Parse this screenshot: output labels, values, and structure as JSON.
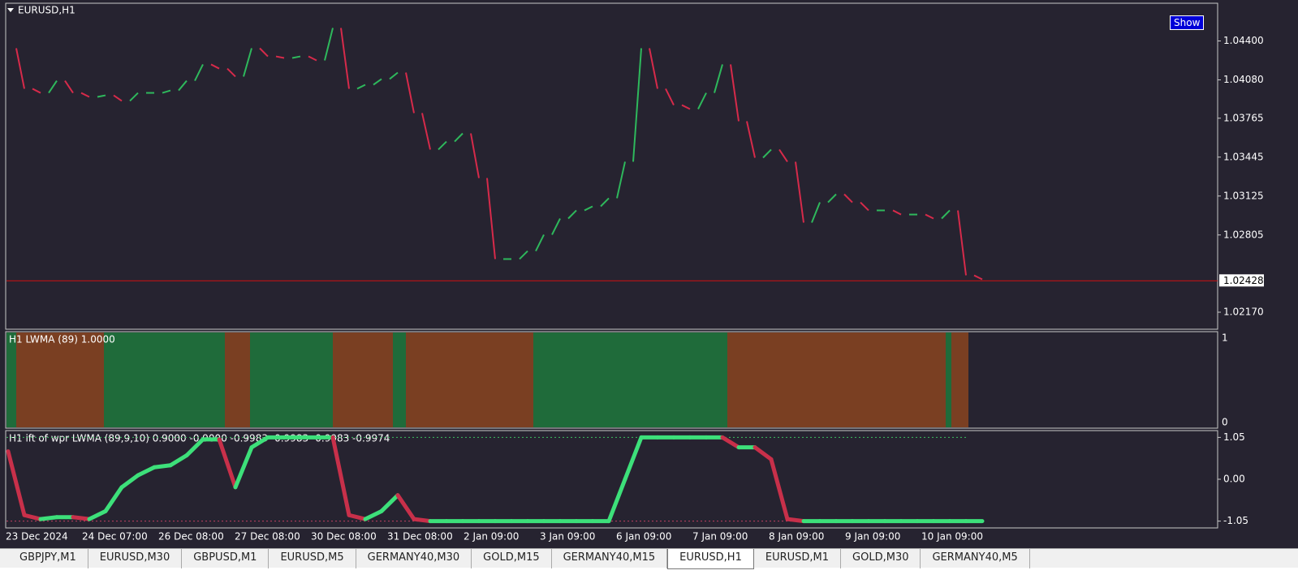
{
  "main": {
    "title": "EURUSD,H1",
    "button": "Show",
    "ylim": [
      1.0203,
      1.0471
    ],
    "yticks": [
      {
        "value": 1.044,
        "label": "1.04400"
      },
      {
        "value": 1.0408,
        "label": "1.04080"
      },
      1.03765,
      1.03445,
      1.03125,
      1.02805,
      {
        "value": 1.0217,
        "label": "1.02170"
      }
    ],
    "current_price": {
      "value": 1.02428,
      "label": "1.02428"
    },
    "close": [
      1.0434,
      1.04007,
      1.03973,
      1.04073,
      1.03973,
      1.0394,
      1.03953,
      1.03907,
      1.03973,
      1.03973,
      1.03993,
      1.04073,
      1.04207,
      1.04173,
      1.04107,
      1.0434,
      1.04273,
      1.0426,
      1.04273,
      1.0424,
      1.04507,
      1.04007,
      1.0404,
      1.04087,
      1.0414,
      1.03807,
      1.03507,
      1.03573,
      1.0364,
      1.03273,
      1.02607,
      1.02607,
      1.02673,
      1.02807,
      1.0294,
      1.03007,
      1.0304,
      1.03107,
      1.03407,
      1.0434,
      1.04007,
      1.03873,
      1.0384,
      1.03973,
      1.04207,
      1.0374,
      1.0344,
      1.03507,
      1.03407,
      1.02907,
      1.03073,
      1.0314,
      1.03073,
      1.03007,
      1.03007,
      1.02973,
      1.02973,
      1.0294,
      1.03007,
      1.02473,
      1.0244
    ]
  },
  "indicator1": {
    "label": "H1 LWMA (89) 1.0000",
    "yticks": [
      "1",
      "0"
    ]
  },
  "indicator2": {
    "label": "H1 ift of wpr LWMA (89,9,10) 0.9000 -0.9000 -0.9983 -0.9983 -0.9983 -0.9974",
    "ylim": [
      -1.2,
      1.2
    ],
    "yticks": [
      1.05,
      {
        "value": 0,
        "label": "0.00"
      },
      -1.05
    ],
    "values": [
      0.7,
      -0.9,
      -1.0,
      -0.95,
      -0.95,
      -1.0,
      -0.8,
      -0.2,
      0.1,
      0.3,
      0.35,
      0.6,
      1.0,
      1.0,
      -0.2,
      0.8,
      1.05,
      1.05,
      1.05,
      1.05,
      1.05,
      -0.9,
      -1.0,
      -0.8,
      -0.4,
      -1.0,
      -1.05,
      -1.05,
      -1.05,
      -1.05,
      -1.05,
      -1.05,
      -1.05,
      -1.05,
      -1.05,
      -1.05,
      -1.05,
      -1.05,
      0.0,
      1.05,
      1.05,
      1.05,
      1.05,
      1.05,
      1.05,
      0.8,
      0.8,
      0.5,
      -1.0,
      -1.05,
      -1.05,
      -1.05,
      -1.05,
      -1.05,
      -1.05,
      -1.05,
      -1.05,
      -1.05,
      -1.05,
      -1.05,
      -1.05
    ]
  },
  "time_labels": [
    "23 Dec 2024",
    "24 Dec 07:00",
    "26 Dec 08:00",
    "27 Dec 08:00",
    "30 Dec 08:00",
    "31 Dec 08:00",
    "2 Jan 09:00",
    "3 Jan 09:00",
    "6 Jan 09:00",
    "7 Jan 09:00",
    "8 Jan 09:00",
    "9 Jan 09:00",
    "10 Jan 09:00"
  ],
  "tabs": [
    "GBPJPY,M1",
    "EURUSD,M30",
    "GBPUSD,M1",
    "EURUSD,M5",
    "GERMANY40,M30",
    "GOLD,M15",
    "GERMANY40,M15",
    "EURUSD,H1",
    "EURUSD,M1",
    "GOLD,M30",
    "GERMANY40,M5"
  ],
  "active_tab": 7
}
